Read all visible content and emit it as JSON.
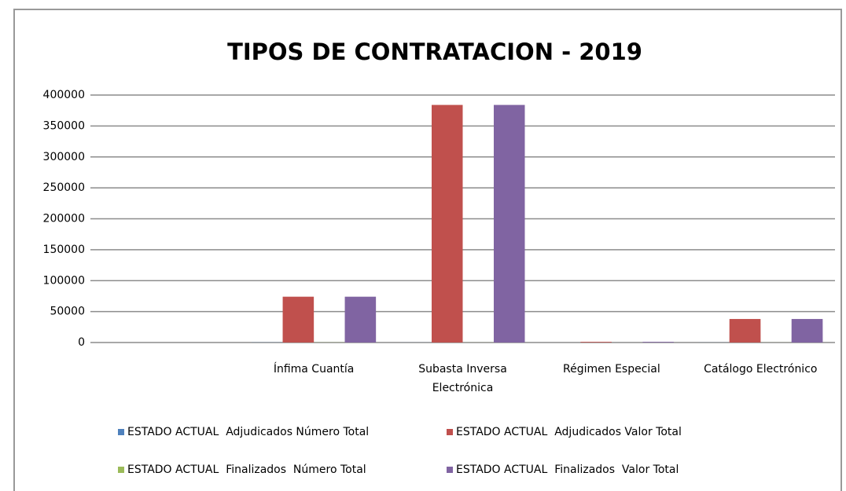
{
  "chart_data": {
    "type": "bar",
    "title": "TIPOS DE CONTRATACION - 2019",
    "categories": [
      null,
      "Ínfima Cuantía",
      "Subasta Inversa\nElectrónica",
      "Régimen Especial",
      "Catálogo Electrónico"
    ],
    "series": [
      {
        "name": "ESTADO ACTUAL  Adjudicados Número Total",
        "color": "#4f81bd",
        "values": [
          null,
          150,
          60,
          5,
          80
        ]
      },
      {
        "name": "ESTADO ACTUAL  Adjudicados Valor Total",
        "color": "#c0504d",
        "values": [
          null,
          74000,
          384000,
          1000,
          38000
        ]
      },
      {
        "name": "ESTADO ACTUAL  Finalizados  Número Total",
        "color": "#9bbb59",
        "values": [
          null,
          150,
          60,
          5,
          80
        ]
      },
      {
        "name": "ESTADO ACTUAL  Finalizados  Valor Total",
        "color": "#8064a2",
        "values": [
          null,
          74000,
          384000,
          1000,
          38000
        ]
      }
    ],
    "ylim": [
      0,
      400000
    ],
    "yticks": [
      0,
      50000,
      100000,
      150000,
      200000,
      250000,
      300000,
      350000,
      400000
    ],
    "grid": true
  }
}
